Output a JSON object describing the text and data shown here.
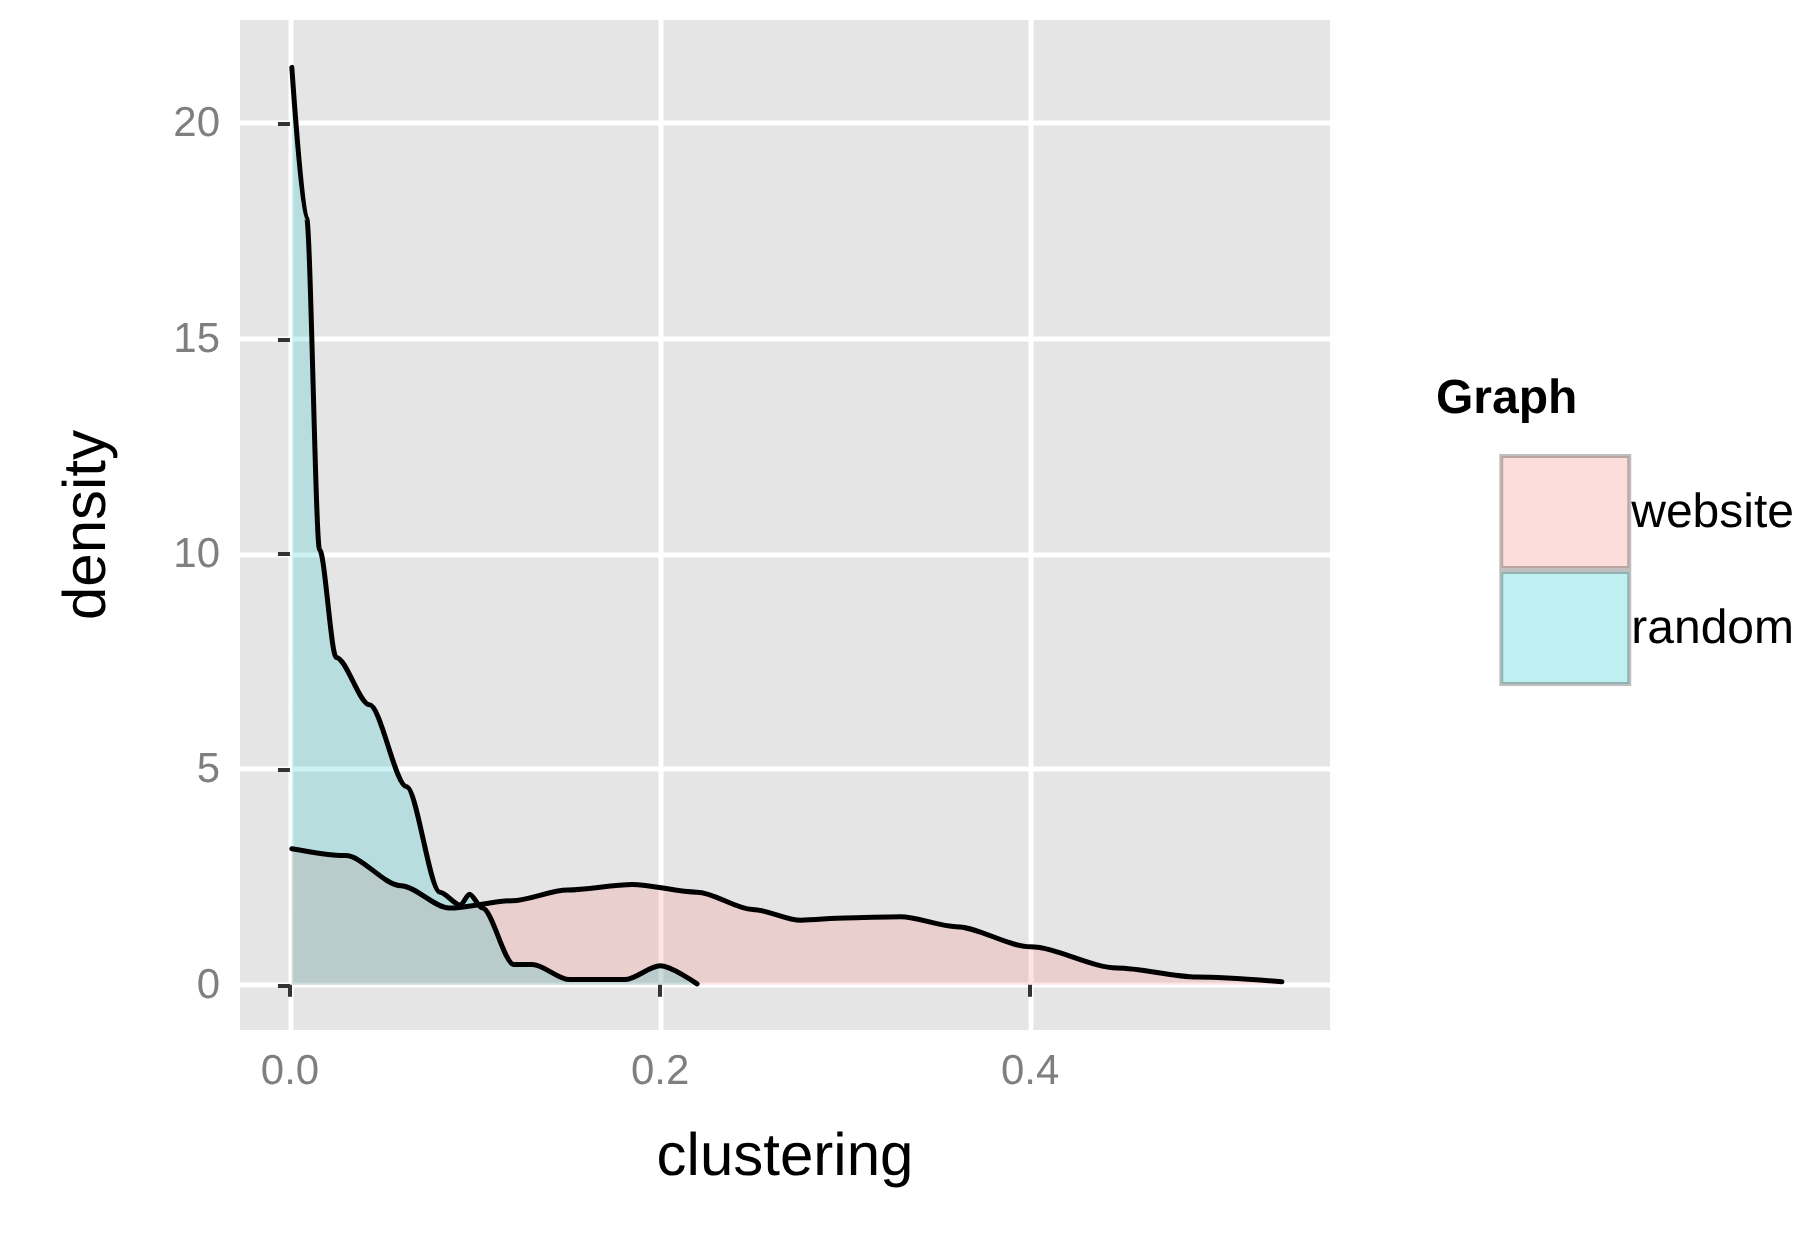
{
  "chart_data": {
    "type": "area",
    "xlabel": "clustering",
    "ylabel": "density",
    "legend_title": "Graph",
    "legend": "right",
    "grid": true,
    "xlim": [
      -0.027,
      0.562
    ],
    "xticks": [
      {
        "value": 0,
        "label": "0.0"
      },
      0.2,
      0.4
    ],
    "ylim": [
      -1.05,
      22.4
    ],
    "yticks": [
      0,
      5,
      10,
      15,
      20
    ],
    "series": [
      {
        "name": "website",
        "color": "#f8766d",
        "x": [
          0.001,
          0.03,
          0.06,
          0.086,
          0.12,
          0.15,
          0.185,
          0.22,
          0.25,
          0.276,
          0.3,
          0.33,
          0.36,
          0.4,
          0.447,
          0.49,
          0.536
        ],
        "values": [
          3.16,
          3.0,
          2.3,
          1.78,
          1.95,
          2.2,
          2.33,
          2.15,
          1.75,
          1.5,
          1.55,
          1.58,
          1.35,
          0.88,
          0.39,
          0.18,
          0.07
        ]
      },
      {
        "name": "random",
        "color": "#00bfc4",
        "x": [
          0.001,
          0.009,
          0.016,
          0.025,
          0.043,
          0.063,
          0.081,
          0.092,
          0.097,
          0.104,
          0.121,
          0.131,
          0.151,
          0.181,
          0.2,
          0.22
        ],
        "values": [
          21.3,
          17.8,
          10.1,
          7.6,
          6.5,
          4.6,
          2.15,
          1.85,
          2.1,
          1.78,
          0.47,
          0.47,
          0.12,
          0.12,
          0.44,
          0.02
        ]
      }
    ]
  }
}
